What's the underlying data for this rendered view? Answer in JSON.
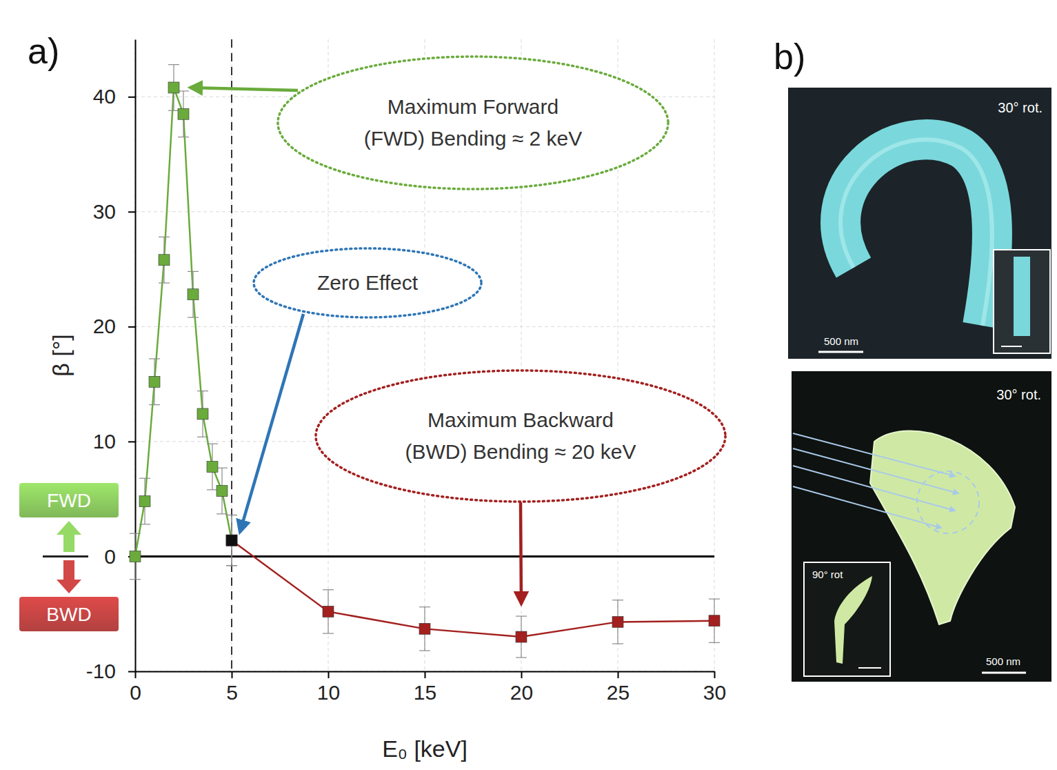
{
  "chart_data": {
    "type": "line",
    "panel_label": "a)",
    "x_label": "E₀ [keV]",
    "y_label": "β [°]",
    "xlim": [
      0,
      30
    ],
    "ylim": [
      -10,
      45
    ],
    "xticks": [
      0,
      5,
      10,
      15,
      20,
      25,
      30
    ],
    "yticks": [
      -10,
      0,
      10,
      20,
      30,
      40
    ],
    "grid": true,
    "legend": "left",
    "marker": "square",
    "series": [
      {
        "name": "FWD",
        "color": "#6aab3c",
        "colors": [
          "#6aab3c",
          "#6aab3c",
          "#6aab3c",
          "#6aab3c",
          "#6aab3c",
          "#6aab3c",
          "#6aab3c",
          "#6aab3c",
          "#6aab3c",
          "#6aab3c",
          "#111111"
        ],
        "x": [
          0,
          0.5,
          1,
          1.5,
          2,
          2.5,
          3,
          3.5,
          4,
          4.5,
          5
        ],
        "values": [
          0,
          4.8,
          15.2,
          25.8,
          40.8,
          38.5,
          22.8,
          12.4,
          7.8,
          5.7,
          1.4
        ],
        "errors": [
          2,
          2,
          2,
          2,
          2,
          2,
          2,
          2,
          2,
          2,
          2.2
        ]
      },
      {
        "name": "BWD",
        "color": "#a3201f",
        "colors": [
          "#111111",
          "#a3201f",
          "#a3201f",
          "#a3201f",
          "#a3201f",
          "#a3201f"
        ],
        "x": [
          5,
          10,
          15,
          20,
          25,
          30
        ],
        "values": [
          1.4,
          -4.8,
          -6.3,
          -7.0,
          -5.7,
          -5.6
        ],
        "errors": [
          2.2,
          1.9,
          1.9,
          1.8,
          1.9,
          1.9
        ]
      }
    ],
    "reference_lines": [
      {
        "x": 5
      },
      {
        "y": 0
      }
    ],
    "annotations": [
      {
        "text": [
          "Maximum Forward",
          "(FWD) Bending ≈ 2 keV"
        ],
        "x": 2,
        "y": 40.8,
        "color": "#6aab3c"
      },
      {
        "text": [
          "Zero Effect"
        ],
        "x": 5,
        "y": 1.4,
        "color": "#2e75b6"
      },
      {
        "text": [
          "Maximum Backward",
          "(BWD) Bending ≈ 20 keV"
        ],
        "x": 20,
        "y": -7.0,
        "color": "#a3201f"
      }
    ]
  },
  "panel_b": {
    "label": "b)",
    "images": [
      {
        "rotation_label": "30° rot.",
        "scale_bar": "500 nm"
      },
      {
        "rotation_label": "30° rot.",
        "scale_bar": "500 nm",
        "inset_label": "90° rot"
      }
    ]
  }
}
